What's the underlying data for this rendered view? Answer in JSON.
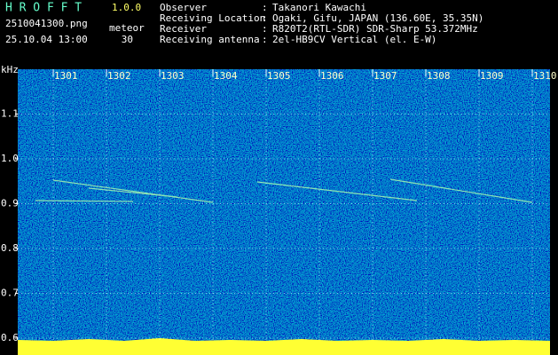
{
  "header": {
    "title": "H R O F F T",
    "version": "1.0.0",
    "file": "2510041300.png",
    "mode": "meteor",
    "datetime": "25.10.04 13:00",
    "count": 30,
    "separator": ":",
    "info": [
      {
        "label": "Observer",
        "value": "Takanori Kawachi"
      },
      {
        "label": "Receiving Location",
        "value": "Ogaki, Gifu, JAPAN (136.60E, 35.35N)"
      },
      {
        "label": "Receiver",
        "value": "R820T2(RTL-SDR) SDR-Sharp 53.372MHz"
      },
      {
        "label": "Receiving antenna",
        "value": "2el-HB9CV Vertical (el. E-W)"
      }
    ]
  },
  "chart_data": {
    "type": "spectrogram",
    "y_label": "kHz",
    "xlim": [
      1300.333,
      1310.333
    ],
    "xticks": [
      1301,
      1302,
      1303,
      1304,
      1305,
      1306,
      1307,
      1308,
      1309,
      1310
    ],
    "ylim": [
      0.59,
      1.2
    ],
    "yticks": [
      {
        "value": 1.1,
        "label": "1.1"
      },
      {
        "value": 1,
        "label": "1.0"
      },
      {
        "value": 0.9,
        "label": "0.9"
      },
      {
        "value": 0.8,
        "label": "0.8"
      },
      {
        "value": 0.7,
        "label": "0.7"
      },
      {
        "value": 0.6,
        "label": "0.6"
      }
    ],
    "grid": true
  }
}
